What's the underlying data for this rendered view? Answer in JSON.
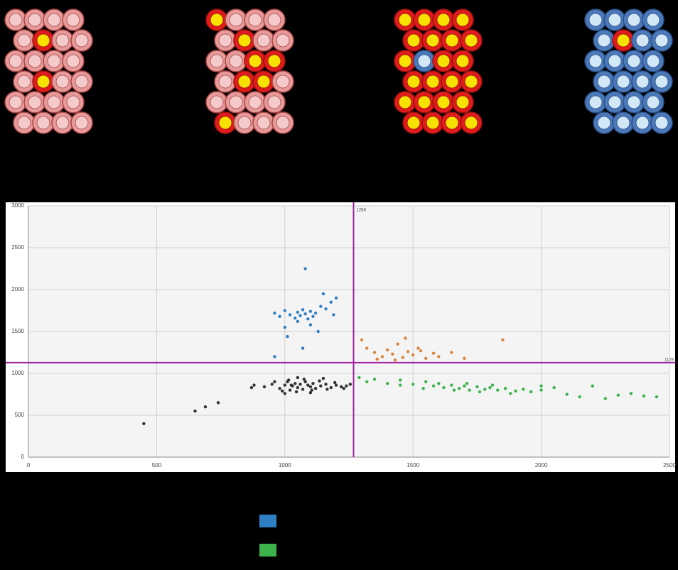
{
  "chart_data": {
    "type": "scatter",
    "xlim": [
      0,
      2500
    ],
    "ylim": [
      0,
      3000
    ],
    "xticks": [
      0,
      500,
      1000,
      1500,
      2000,
      2500
    ],
    "yticks": [
      0,
      500,
      1000,
      1500,
      2000,
      2500,
      3000
    ],
    "grid": true,
    "x_threshold": 1268,
    "y_threshold": 1128,
    "threshold_color": "#a020a0",
    "series": [
      {
        "color": "#333333",
        "x": [
          920,
          950,
          980,
          1000,
          1010,
          1020,
          1030,
          1040,
          1050,
          1060,
          1070,
          1080,
          1090,
          1100,
          1110,
          1120,
          1140,
          1160,
          1180,
          1200,
          1220,
          1240,
          1255,
          960,
          990,
          1015,
          1045,
          1075,
          1105,
          1135,
          1165,
          1195,
          1230,
          880,
          870,
          1000,
          1050,
          1100,
          1150,
          1025,
          450,
          650,
          690,
          740
        ],
        "values": [
          840,
          870,
          820,
          860,
          900,
          800,
          850,
          880,
          830,
          870,
          810,
          900,
          860,
          840,
          880,
          820,
          850,
          870,
          830,
          860,
          840,
          850,
          870,
          900,
          790,
          920,
          780,
          930,
          800,
          910,
          810,
          890,
          820,
          860,
          830,
          760,
          950,
          770,
          940,
          860,
          400,
          550,
          600,
          650
        ]
      },
      {
        "color": "#2f7fc4",
        "x": [
          960,
          980,
          1000,
          1020,
          1040,
          1050,
          1060,
          1070,
          1080,
          1090,
          1100,
          1110,
          1120,
          1140,
          1160,
          1180,
          1200,
          1000,
          1050,
          1100,
          1080,
          1150,
          1010,
          1070,
          1190,
          1130,
          960
        ],
        "values": [
          1720,
          1680,
          1750,
          1700,
          1660,
          1730,
          1690,
          1760,
          1710,
          1650,
          1740,
          1680,
          1720,
          1800,
          1770,
          1850,
          1900,
          1550,
          1620,
          1580,
          2250,
          1950,
          1440,
          1300,
          1700,
          1500,
          1200
        ]
      },
      {
        "color": "#d9843a",
        "x": [
          1300,
          1320,
          1350,
          1380,
          1400,
          1420,
          1440,
          1460,
          1480,
          1500,
          1520,
          1550,
          1580,
          1600,
          1650,
          1700,
          1430,
          1470,
          1360,
          1530,
          1850
        ],
        "values": [
          1400,
          1300,
          1250,
          1200,
          1280,
          1230,
          1350,
          1190,
          1260,
          1220,
          1300,
          1180,
          1240,
          1200,
          1250,
          1180,
          1160,
          1420,
          1170,
          1270,
          1400
        ]
      },
      {
        "color": "#3cb44b",
        "x": [
          1290,
          1320,
          1350,
          1400,
          1450,
          1500,
          1550,
          1580,
          1600,
          1620,
          1650,
          1680,
          1700,
          1720,
          1750,
          1780,
          1800,
          1830,
          1860,
          1900,
          1930,
          1960,
          2000,
          2050,
          2100,
          2150,
          2200,
          2250,
          2300,
          2350,
          2400,
          2450,
          1660,
          1710,
          1760,
          1810,
          1540,
          1450,
          1880,
          2000
        ],
        "values": [
          950,
          900,
          930,
          880,
          920,
          870,
          900,
          850,
          880,
          830,
          860,
          820,
          850,
          800,
          840,
          810,
          830,
          800,
          820,
          790,
          810,
          780,
          800,
          830,
          750,
          720,
          850,
          700,
          740,
          760,
          730,
          720,
          800,
          880,
          780,
          860,
          820,
          860,
          760,
          850
        ]
      }
    ]
  }
}
